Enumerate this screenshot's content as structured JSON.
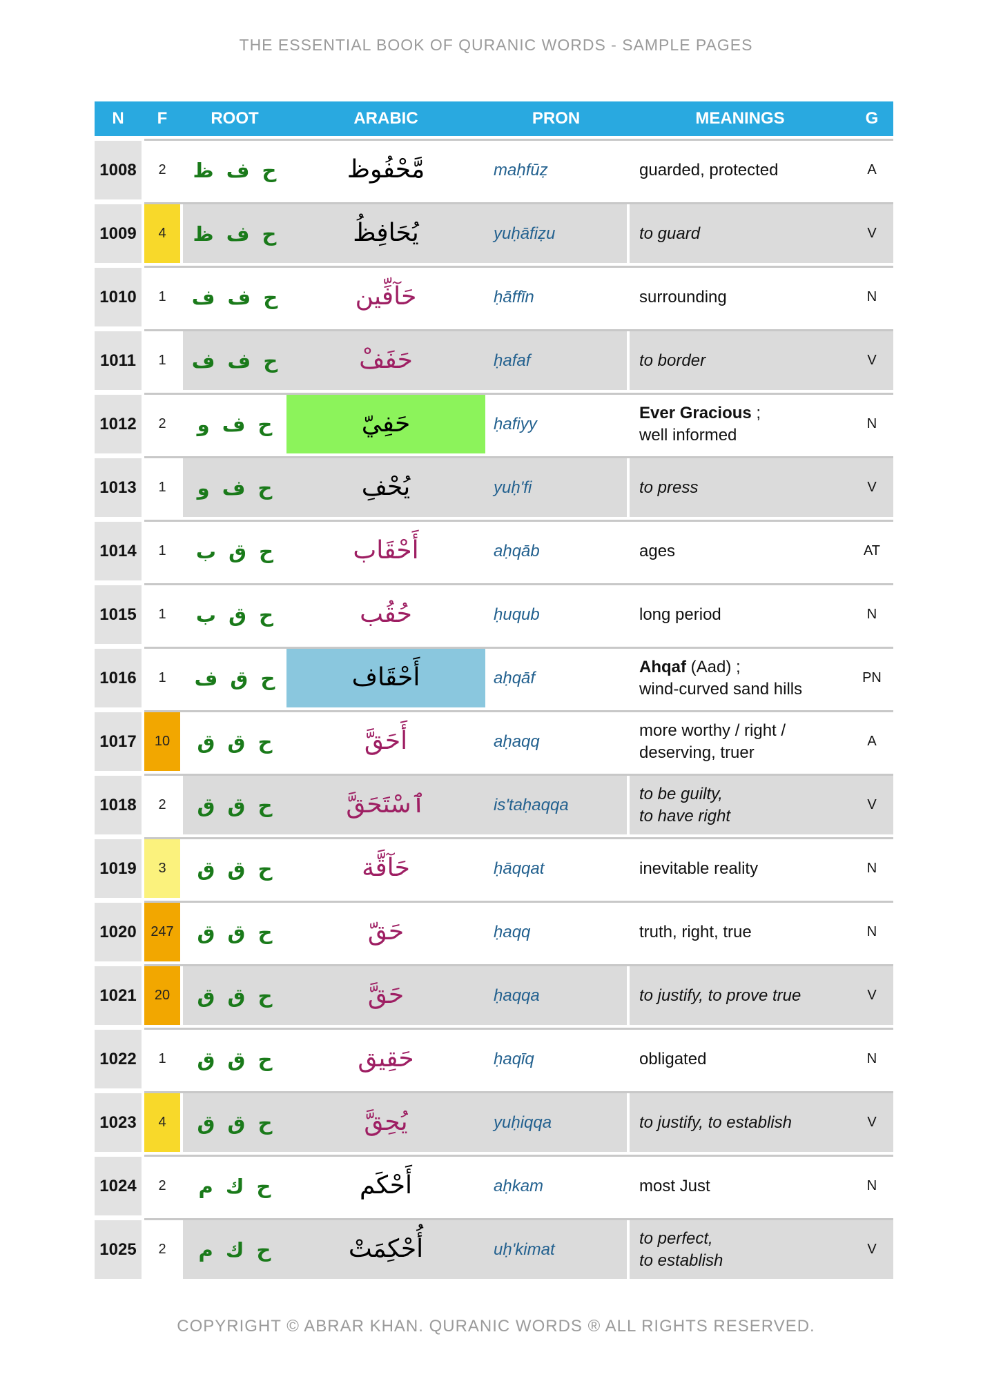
{
  "page": {
    "title": "THE ESSENTIAL BOOK OF QURANIC WORDS - SAMPLE PAGES",
    "footer": "COPYRIGHT © ABRAR KHAN. QURANIC WORDS ® ALL RIGHTS RESERVED."
  },
  "colors": {
    "header_bg": "#29A9E0",
    "row_gray": "#DBDBDB",
    "n_cell_gray": "#E2E2E2",
    "root_green": "#1A7A1A",
    "arabic_magenta": "#9E1F63",
    "arabic_black": "#000000",
    "pron_blue": "#23618F",
    "f_yellow": "#F8D92A",
    "f_orange": "#F2A700",
    "f_pale_yellow": "#FBF27D",
    "highlight_green": "#8CF35B",
    "highlight_blue": "#8AC7DE"
  },
  "table": {
    "headers": [
      "N",
      "F",
      "ROOT",
      "ARABIC",
      "PRON",
      "MEANINGS",
      "G"
    ],
    "rows": [
      {
        "n": "1008",
        "f": "2",
        "f_bg": null,
        "root": "ح ف ظ",
        "arabic": "مَّحْفُوظ",
        "arabic_color": "black",
        "arabic_bg": null,
        "pron": "maḥfūẓ",
        "meaning_lines": [
          [
            {
              "t": "guarded, protected"
            }
          ]
        ],
        "italic": false,
        "g": "A",
        "gray": false
      },
      {
        "n": "1009",
        "f": "4",
        "f_bg": "yellow",
        "root": "ح ف ظ",
        "arabic": "يُحَافِظُ",
        "arabic_color": "black",
        "arabic_bg": null,
        "pron": "yuḥāfiẓu",
        "meaning_lines": [
          [
            {
              "t": "to guard"
            }
          ]
        ],
        "italic": true,
        "g": "V",
        "gray": true
      },
      {
        "n": "1010",
        "f": "1",
        "f_bg": null,
        "root": "ح ف ف",
        "arabic": "حَآفِّين",
        "arabic_color": "magenta",
        "arabic_bg": null,
        "pron": "ḥāffīn",
        "meaning_lines": [
          [
            {
              "t": "surrounding"
            }
          ]
        ],
        "italic": false,
        "g": "N",
        "gray": false
      },
      {
        "n": "1011",
        "f": "1",
        "f_bg": null,
        "root": "ح ف ف",
        "arabic": "حَفَفْ",
        "arabic_color": "magenta",
        "arabic_bg": null,
        "pron": "ḥafaf",
        "meaning_lines": [
          [
            {
              "t": "to border"
            }
          ]
        ],
        "italic": true,
        "g": "V",
        "gray": true
      },
      {
        "n": "1012",
        "f": "2",
        "f_bg": null,
        "root": "ح ف و",
        "arabic": "حَفِيّ",
        "arabic_color": "black",
        "arabic_bg": "green",
        "pron": "ḥafiyy",
        "meaning_lines": [
          [
            {
              "t": "Ever Gracious",
              "b": true
            },
            {
              "t": " ;"
            }
          ],
          [
            {
              "t": "well informed"
            }
          ]
        ],
        "italic": false,
        "g": "N",
        "gray": false
      },
      {
        "n": "1013",
        "f": "1",
        "f_bg": null,
        "root": "ح ف و",
        "arabic": "يُحْفِ",
        "arabic_color": "black",
        "arabic_bg": null,
        "pron": "yuḥ'fi",
        "meaning_lines": [
          [
            {
              "t": "to press"
            }
          ]
        ],
        "italic": true,
        "g": "V",
        "gray": true
      },
      {
        "n": "1014",
        "f": "1",
        "f_bg": null,
        "root": "ح ق ب",
        "arabic": "أَحْقَاب",
        "arabic_color": "magenta",
        "arabic_bg": null,
        "pron": "aḥqāb",
        "meaning_lines": [
          [
            {
              "t": "ages"
            }
          ]
        ],
        "italic": false,
        "g": "AT",
        "gray": false
      },
      {
        "n": "1015",
        "f": "1",
        "f_bg": null,
        "root": "ح ق ب",
        "arabic": "حُقُب",
        "arabic_color": "magenta",
        "arabic_bg": null,
        "pron": "ḥuqub",
        "meaning_lines": [
          [
            {
              "t": "long period"
            }
          ]
        ],
        "italic": false,
        "g": "N",
        "gray": false
      },
      {
        "n": "1016",
        "f": "1",
        "f_bg": null,
        "root": "ح ق ف",
        "arabic": "أَحْقَاف",
        "arabic_color": "black",
        "arabic_bg": "blue",
        "pron": "aḥqāf",
        "meaning_lines": [
          [
            {
              "t": "Ahqaf",
              "b": true
            },
            {
              "t": " (Aad) ;"
            }
          ],
          [
            {
              "t": "wind-curved sand hills"
            }
          ]
        ],
        "italic": false,
        "g": "PN",
        "gray": false
      },
      {
        "n": "1017",
        "f": "10",
        "f_bg": "orange",
        "root": "ح ق ق",
        "arabic": "أَحَقَّ",
        "arabic_color": "magenta",
        "arabic_bg": null,
        "pron": "aḥaqq",
        "meaning_lines": [
          [
            {
              "t": "more worthy / right /"
            }
          ],
          [
            {
              "t": "deserving, truer"
            }
          ]
        ],
        "italic": false,
        "g": "A",
        "gray": false
      },
      {
        "n": "1018",
        "f": "2",
        "f_bg": null,
        "root": "ح ق ق",
        "arabic": "ٱسْتَحَقَّ",
        "arabic_color": "magenta",
        "arabic_bg": null,
        "pron": "is'taḥaqqa",
        "meaning_lines": [
          [
            {
              "t": "to be guilty,"
            }
          ],
          [
            {
              "t": "to have right"
            }
          ]
        ],
        "italic": true,
        "g": "V",
        "gray": true
      },
      {
        "n": "1019",
        "f": "3",
        "f_bg": "pale",
        "root": "ح ق ق",
        "arabic": "حَآقَّة",
        "arabic_color": "magenta",
        "arabic_bg": null,
        "pron": "ḥāqqat",
        "meaning_lines": [
          [
            {
              "t": "inevitable reality"
            }
          ]
        ],
        "italic": false,
        "g": "N",
        "gray": false
      },
      {
        "n": "1020",
        "f": "247",
        "f_bg": "orange",
        "root": "ح ق ق",
        "arabic": "حَقّ",
        "arabic_color": "magenta",
        "arabic_bg": null,
        "pron": "ḥaqq",
        "meaning_lines": [
          [
            {
              "t": "truth, right, true"
            }
          ]
        ],
        "italic": false,
        "g": "N",
        "gray": false
      },
      {
        "n": "1021",
        "f": "20",
        "f_bg": "orange",
        "root": "ح ق ق",
        "arabic": "حَقَّ",
        "arabic_color": "magenta",
        "arabic_bg": null,
        "pron": "ḥaqqa",
        "meaning_lines": [
          [
            {
              "t": "to justify, to prove true"
            }
          ]
        ],
        "italic": true,
        "g": "V",
        "gray": true
      },
      {
        "n": "1022",
        "f": "1",
        "f_bg": null,
        "root": "ح ق ق",
        "arabic": "حَقِيق",
        "arabic_color": "magenta",
        "arabic_bg": null,
        "pron": "ḥaqīq",
        "meaning_lines": [
          [
            {
              "t": "obligated"
            }
          ]
        ],
        "italic": false,
        "g": "N",
        "gray": false
      },
      {
        "n": "1023",
        "f": "4",
        "f_bg": "yellow",
        "root": "ح ق ق",
        "arabic": "يُحِقَّ",
        "arabic_color": "magenta",
        "arabic_bg": null,
        "pron": "yuḥiqqa",
        "meaning_lines": [
          [
            {
              "t": "to justify, to establish"
            }
          ]
        ],
        "italic": true,
        "g": "V",
        "gray": true
      },
      {
        "n": "1024",
        "f": "2",
        "f_bg": null,
        "root": "ح ك م",
        "arabic": "أَحْكَم",
        "arabic_color": "black",
        "arabic_bg": null,
        "pron": "aḥkam",
        "meaning_lines": [
          [
            {
              "t": "most Just"
            }
          ]
        ],
        "italic": false,
        "g": "N",
        "gray": false
      },
      {
        "n": "1025",
        "f": "2",
        "f_bg": null,
        "root": "ح ك م",
        "arabic": "أُحْكِمَتْ",
        "arabic_color": "black",
        "arabic_bg": null,
        "pron": "uḥ'kimat",
        "meaning_lines": [
          [
            {
              "t": "to perfect,"
            }
          ],
          [
            {
              "t": "to establish"
            }
          ]
        ],
        "italic": true,
        "g": "V",
        "gray": true
      }
    ]
  }
}
